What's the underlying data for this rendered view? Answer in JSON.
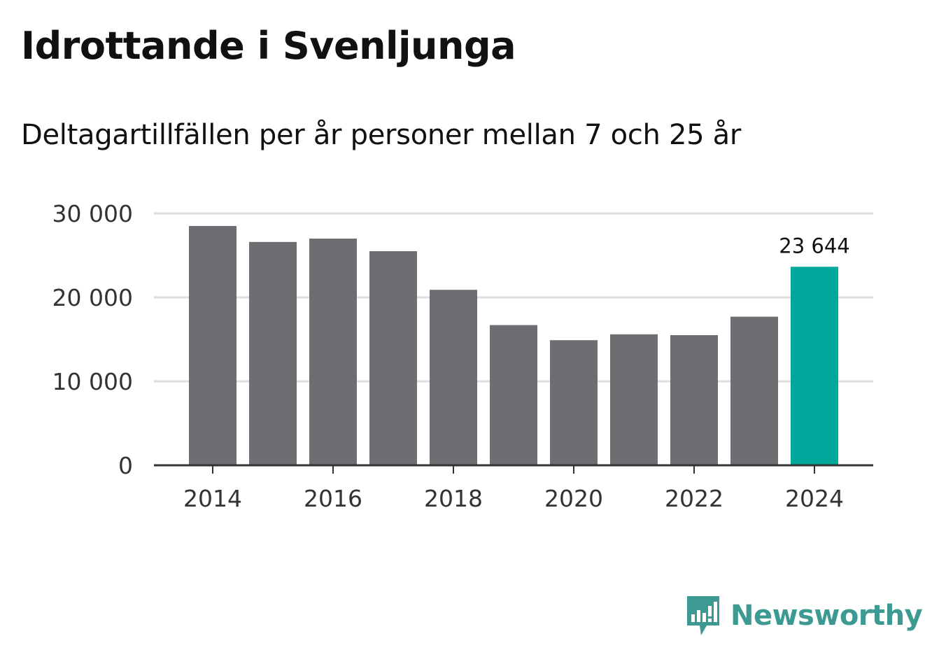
{
  "title": "Idrottande i Svenljunga",
  "subtitle": "Deltagartillfällen per år personer mellan 7 och 25 år",
  "colors": {
    "bar": "#6e6d72",
    "highlight": "#00a79a",
    "grid": "#dddddd",
    "axis": "#333333",
    "brand": "#3c9a92"
  },
  "brand": {
    "name": "Newsworthy",
    "icon": "newsworthy-logo-icon"
  },
  "chart_data": {
    "type": "bar",
    "title": "Idrottande i Svenljunga",
    "subtitle": "Deltagartillfällen per år personer mellan 7 och 25 år",
    "xlabel": "",
    "ylabel": "",
    "ylim": [
      0,
      30000
    ],
    "grid": true,
    "categories": [
      "2014",
      "2015",
      "2016",
      "2017",
      "2018",
      "2019",
      "2020",
      "2021",
      "2022",
      "2023",
      "2024"
    ],
    "values": [
      28500,
      26600,
      27000,
      25500,
      20900,
      16700,
      14900,
      15600,
      15500,
      17700,
      23644
    ],
    "highlight_index": 10,
    "y_ticks": [
      {
        "value": 0,
        "label": "0"
      },
      {
        "value": 10000,
        "label": "10 000"
      },
      {
        "value": 20000,
        "label": "20 000"
      },
      {
        "value": 30000,
        "label": "30 000"
      }
    ],
    "x_tick_labels": [
      "2014",
      "2016",
      "2018",
      "2020",
      "2022",
      "2024"
    ],
    "annotations": [
      {
        "category": "2024",
        "label": "23 644"
      }
    ]
  }
}
